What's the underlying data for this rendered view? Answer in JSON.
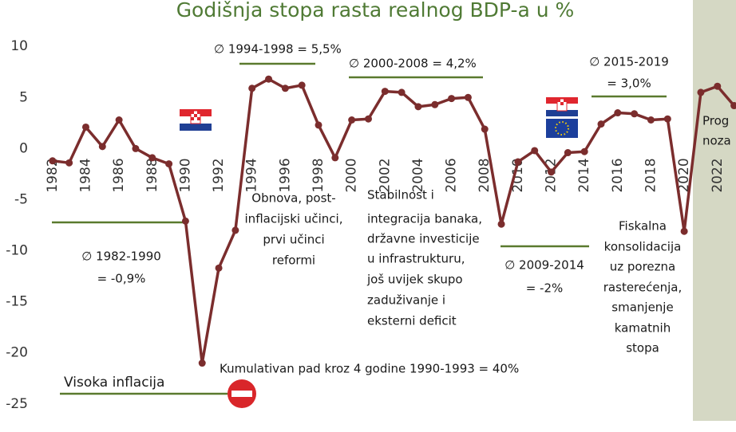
{
  "chart_data": {
    "type": "line",
    "title": "Godišnja stopa rasta realnog BDP-a u %",
    "x": [
      1982,
      1983,
      1984,
      1985,
      1986,
      1987,
      1988,
      1989,
      1990,
      1991,
      1992,
      1993,
      1994,
      1995,
      1996,
      1997,
      1998,
      1999,
      2000,
      2001,
      2002,
      2003,
      2004,
      2005,
      2006,
      2007,
      2008,
      2009,
      2010,
      2011,
      2012,
      2013,
      2014,
      2015,
      2016,
      2017,
      2018,
      2019,
      2020,
      2021,
      2022,
      2023
    ],
    "values": [
      -1.2,
      -1.4,
      2.1,
      0.2,
      2.8,
      0,
      -0.9,
      -1.5,
      -7.1,
      -21.0,
      -11.7,
      -8.0,
      5.9,
      6.8,
      5.9,
      6.2,
      2.3,
      -0.9,
      2.8,
      2.9,
      5.6,
      5.5,
      4.1,
      4.3,
      4.9,
      5.0,
      1.9,
      -7.4,
      -1.3,
      -0.2,
      -2.3,
      -0.4,
      -0.3,
      2.4,
      3.5,
      3.4,
      2.8,
      2.9,
      -8.1,
      5.5,
      6.1,
      4.2
    ],
    "color": "#7b2d2d",
    "xlim": [
      1981,
      2023.5
    ],
    "xticks": [
      1982,
      1984,
      1986,
      1988,
      1990,
      1992,
      1994,
      1996,
      1998,
      2000,
      2002,
      2004,
      2006,
      2008,
      2010,
      2012,
      2014,
      2016,
      2018,
      2020,
      2022
    ],
    "ylim": [
      -26.5,
      11.5
    ],
    "yticks": [
      -25,
      -20,
      -15,
      -10,
      -5,
      0,
      5,
      10
    ],
    "annotations": {
      "avg_1994_1998": "∅ 1994-1998 = 5,5%",
      "avg_2000_2008": "∅ 2000-2008 = 4,2%",
      "avg_2015_2019": [
        "∅ 2015-2019",
        "= 3,0%"
      ],
      "avg_1982_1990": [
        "∅ 1982-1990",
        "= -0,9%"
      ],
      "avg_2009_2014": [
        "∅ 2009-2014",
        "= -2%"
      ],
      "recovery": [
        "Obnova, post-",
        "inflacijski učinci,",
        "prvi učinci",
        "reformi"
      ],
      "stability": [
        "Stabilnost i",
        "integracija banaka,",
        "državne investicije",
        "u infrastrukturu,",
        "još uvijek skupo",
        "zaduživanje i",
        "eksterni deficit"
      ],
      "fiscal": [
        "Fiskalna",
        "konsolidacija",
        "uz porezna",
        "rasterećenja,",
        "smanjenje",
        "kamatnih",
        "stopa"
      ],
      "cumulative": "Kumulativan pad kroz 4 godine 1990-1993 = 40%",
      "inflation": "Visoka inflacija",
      "forecast": [
        "Prog",
        "noza"
      ]
    }
  }
}
